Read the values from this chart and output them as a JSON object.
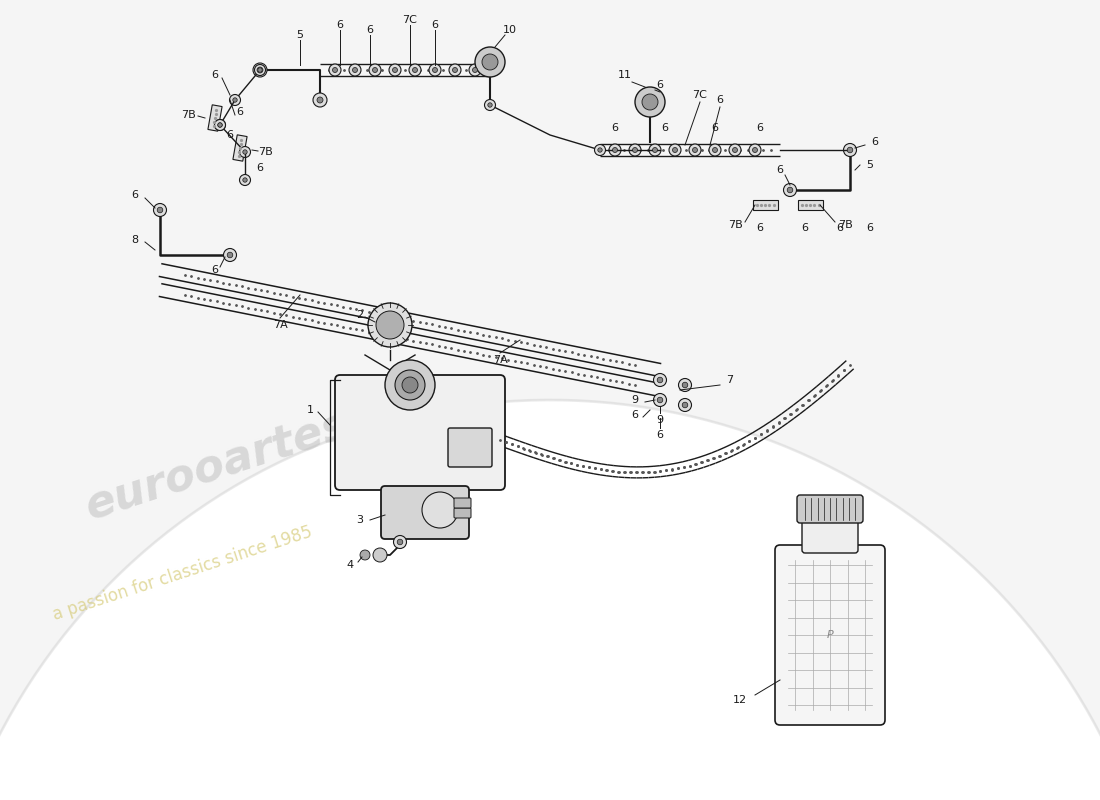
{
  "bg_color": "#ffffff",
  "lc": "#1a1a1a",
  "fig_w": 11.0,
  "fig_h": 8.0,
  "xlim": [
    0,
    110
  ],
  "ylim": [
    0,
    80
  ],
  "watermark1": "eurooartes",
  "watermark2": "a passion for classics since 1985",
  "wm_color": "#cccccc",
  "wm2_color": "#d4c870"
}
